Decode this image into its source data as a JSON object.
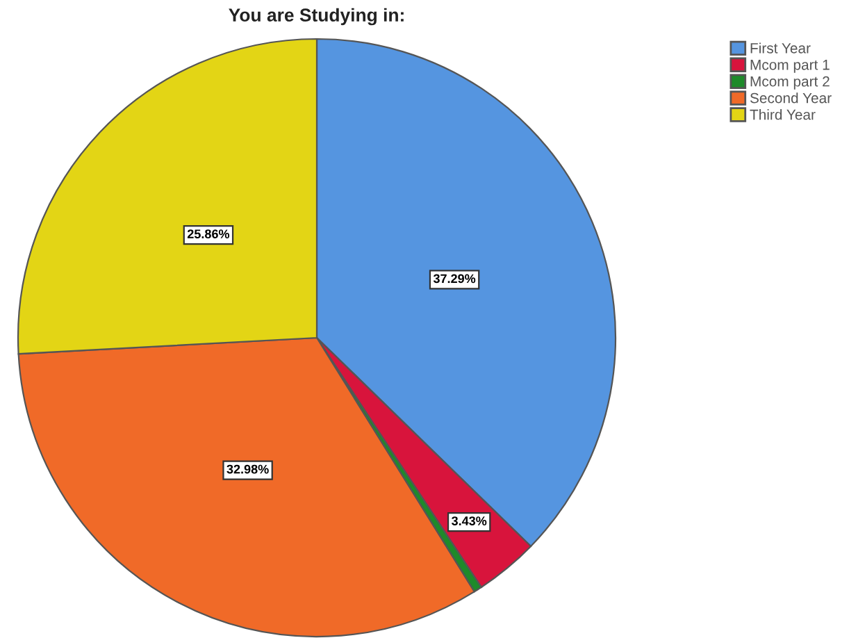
{
  "chart_data": {
    "type": "pie",
    "title": "You are Studying in:",
    "categories": [
      "First Year",
      "Mcom part 1",
      "Mcom part 2",
      "Second Year",
      "Third Year"
    ],
    "values": [
      37.29,
      3.43,
      0.44,
      32.98,
      25.86
    ],
    "colors": [
      "#5595e0",
      "#d8143c",
      "#1e8a2a",
      "#f06a28",
      "#e3d515"
    ],
    "value_labels": [
      "37.29%",
      "3.43%",
      null,
      "32.98%",
      "25.86%"
    ],
    "legend": "top right"
  }
}
